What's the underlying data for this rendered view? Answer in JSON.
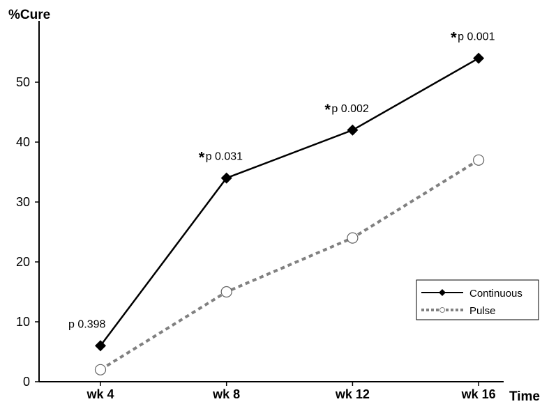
{
  "chart_data": {
    "type": "line",
    "ylabel": "%Cure",
    "xlabel": "Time",
    "categories": [
      "wk 4",
      "wk 8",
      "wk 12",
      "wk 16"
    ],
    "yticks": [
      0,
      10,
      20,
      30,
      40,
      50
    ],
    "ylim": [
      0,
      60
    ],
    "grid": false,
    "legend_position": "bottom-right",
    "series": [
      {
        "name": "Continuous",
        "values": [
          6,
          34,
          42,
          54
        ],
        "color": "#000000",
        "line_style": "solid",
        "marker": "diamond-filled"
      },
      {
        "name": "Pulse",
        "values": [
          2,
          15,
          24,
          37
        ],
        "color": "#808080",
        "line_style": "dotted",
        "marker": "circle-open"
      }
    ],
    "annotations": [
      {
        "category": "wk 4",
        "star": "",
        "text": "p 0.398"
      },
      {
        "category": "wk 8",
        "star": "*",
        "text": "p 0.031"
      },
      {
        "category": "wk 12",
        "star": "*",
        "text": "p 0.002"
      },
      {
        "category": "wk 16",
        "star": "*",
        "text": "p 0.001"
      }
    ]
  }
}
